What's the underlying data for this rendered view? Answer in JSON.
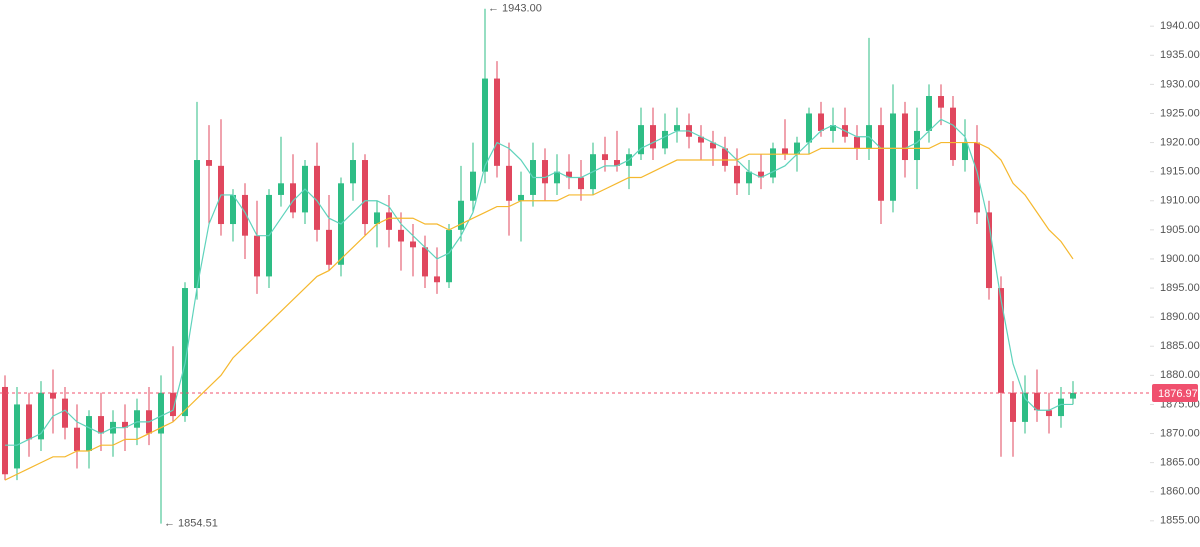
{
  "chart_data": {
    "type": "candlestick",
    "open": [
      1878,
      1864,
      1875,
      1869,
      1877,
      1876,
      1871,
      1867,
      1873,
      1870,
      1872,
      1871,
      1874,
      1870,
      1877,
      1873,
      1895,
      1917,
      1916,
      1906,
      1911,
      1904,
      1897,
      1911,
      1913,
      1908,
      1916,
      1905,
      1899,
      1913,
      1917,
      1906,
      1908,
      1905,
      1903,
      1902,
      1897,
      1896,
      1905,
      1910,
      1915,
      1931,
      1916,
      1910,
      1911,
      1917,
      1913,
      1915,
      1914,
      1912,
      1918,
      1917,
      1916,
      1918,
      1923,
      1919,
      1922,
      1923,
      1921,
      1920,
      1919,
      1916,
      1913,
      1915,
      1914,
      1919,
      1918,
      1920,
      1925,
      1922,
      1923,
      1921,
      1919,
      1923,
      1910,
      1925,
      1917,
      1922,
      1928,
      1926,
      1917,
      1920,
      1908,
      1895,
      1877,
      1872,
      1877,
      1874,
      1873,
      1876
    ],
    "high": [
      1880,
      1878,
      1877,
      1879,
      1881,
      1878,
      1875,
      1874,
      1877,
      1874,
      1875,
      1876,
      1878,
      1880,
      1885,
      1896,
      1927,
      1923,
      1924,
      1912,
      1913,
      1910,
      1912,
      1921,
      1918,
      1917,
      1920,
      1911,
      1914,
      1920,
      1918,
      1910,
      1911,
      1908,
      1906,
      1904,
      1902,
      1906,
      1916,
      1920,
      1943,
      1934,
      1920,
      1915,
      1920,
      1919,
      1918,
      1918,
      1917,
      1920,
      1921,
      1922,
      1919,
      1926,
      1926,
      1925,
      1926,
      1925,
      1923,
      1922,
      1921,
      1919,
      1917,
      1918,
      1920,
      1924,
      1921,
      1926,
      1927,
      1926,
      1926,
      1923,
      1938,
      1926,
      1930,
      1927,
      1926,
      1930,
      1930,
      1928,
      1924,
      1923,
      1910,
      1897,
      1879,
      1880,
      1881,
      1877,
      1878,
      1879
    ],
    "low": [
      1862,
      1862,
      1866,
      1867,
      1870,
      1869,
      1864,
      1864,
      1867,
      1866,
      1867,
      1868,
      1868,
      1854.51,
      1872,
      1872,
      1893,
      1906,
      1904,
      1903,
      1900,
      1894,
      1895,
      1909,
      1907,
      1906,
      1903,
      1898,
      1897,
      1910,
      1904,
      1902,
      1902,
      1898,
      1897,
      1895,
      1894,
      1895,
      1903,
      1908,
      1913,
      1914,
      1904,
      1903,
      1909,
      1910,
      1911,
      1912,
      1910,
      1911,
      1915,
      1915,
      1912,
      1917,
      1917,
      1918,
      1920,
      1919,
      1917,
      1916,
      1915,
      1911,
      1911,
      1912,
      1913,
      1917,
      1915,
      1918,
      1921,
      1920,
      1920,
      1917,
      1917,
      1906,
      1908,
      1914,
      1912,
      1920,
      1923,
      1916,
      1915,
      1906,
      1893,
      1866,
      1866,
      1870,
      1872,
      1870,
      1871,
      1875
    ],
    "close": [
      1863,
      1875,
      1869,
      1877,
      1876,
      1871,
      1867,
      1873,
      1870,
      1872,
      1871,
      1874,
      1870,
      1877,
      1873,
      1895,
      1917,
      1916,
      1906,
      1911,
      1904,
      1897,
      1911,
      1913,
      1908,
      1916,
      1905,
      1899,
      1913,
      1917,
      1906,
      1908,
      1905,
      1903,
      1902,
      1897,
      1896,
      1905,
      1910,
      1915,
      1931,
      1916,
      1910,
      1911,
      1917,
      1913,
      1915,
      1914,
      1912,
      1918,
      1917,
      1916,
      1918,
      1923,
      1919,
      1922,
      1923,
      1921,
      1920,
      1919,
      1916,
      1913,
      1915,
      1914,
      1919,
      1918,
      1920,
      1925,
      1922,
      1923,
      1921,
      1919,
      1923,
      1910,
      1925,
      1917,
      1922,
      1928,
      1926,
      1917,
      1920,
      1908,
      1895,
      1877,
      1872,
      1877,
      1874,
      1873,
      1876,
      1876.97
    ],
    "up_color": "#2ebd85",
    "down_color": "#e0475e",
    "lines": [
      {
        "color": "#5fd3bc",
        "values": [
          1868,
          1868,
          1869,
          1870,
          1873,
          1874,
          1872,
          1871,
          1870,
          1871,
          1871,
          1872,
          1872,
          1873,
          1874,
          1882,
          1895,
          1906,
          1911,
          1911,
          1908,
          1904,
          1904,
          1907,
          1910,
          1912,
          1910,
          1907,
          1906,
          1908,
          1910,
          1910,
          1909,
          1906,
          1904,
          1902,
          1900,
          1901,
          1904,
          1908,
          1916,
          1920,
          1919,
          1917,
          1914,
          1914,
          1915,
          1914,
          1914,
          1915,
          1916,
          1916,
          1917,
          1919,
          1920,
          1921,
          1922,
          1922,
          1921,
          1920,
          1919,
          1917,
          1915,
          1914,
          1915,
          1916,
          1918,
          1920,
          1922,
          1923,
          1922,
          1921,
          1921,
          1919,
          1919,
          1919,
          1920,
          1922,
          1924,
          1923,
          1921,
          1915,
          1906,
          1893,
          1882,
          1876,
          1874,
          1874,
          1875,
          1875
        ]
      },
      {
        "color": "#f5b82e",
        "values": [
          1862,
          1863,
          1864,
          1865,
          1866,
          1866,
          1867,
          1867,
          1868,
          1868,
          1869,
          1869,
          1870,
          1871,
          1872,
          1874,
          1876,
          1878,
          1880,
          1883,
          1885,
          1887,
          1889,
          1891,
          1893,
          1895,
          1897,
          1898,
          1900,
          1902,
          1904,
          1906,
          1907,
          1907,
          1907,
          1906,
          1906,
          1905,
          1906,
          1907,
          1908,
          1909,
          1909,
          1910,
          1910,
          1910,
          1910,
          1911,
          1911,
          1911,
          1912,
          1913,
          1914,
          1914,
          1915,
          1916,
          1917,
          1917,
          1917,
          1917,
          1917,
          1917,
          1918,
          1918,
          1918,
          1918,
          1918,
          1918,
          1919,
          1919,
          1919,
          1919,
          1919,
          1919,
          1919,
          1919,
          1919,
          1919,
          1920,
          1920,
          1920,
          1920,
          1919,
          1917,
          1913,
          1911,
          1908,
          1905,
          1903,
          1900
        ]
      }
    ],
    "ylim": [
      1850.5,
      1944.5
    ],
    "yticks": [
      {
        "value": 1855,
        "label": "1855.00"
      },
      {
        "value": 1860,
        "label": "1860.00"
      },
      {
        "value": 1865,
        "label": "1865.00"
      },
      {
        "value": 1870,
        "label": "1870.00"
      },
      {
        "value": 1875,
        "label": "1875.00"
      },
      {
        "value": 1880,
        "label": "1880.00"
      },
      {
        "value": 1885,
        "label": "1885.00"
      },
      {
        "value": 1890,
        "label": "1890.00"
      },
      {
        "value": 1895,
        "label": "1895.00"
      },
      {
        "value": 1900,
        "label": "1900.00"
      },
      {
        "value": 1905,
        "label": "1905.00"
      },
      {
        "value": 1910,
        "label": "1910.00"
      },
      {
        "value": 1915,
        "label": "1915.00"
      },
      {
        "value": 1920,
        "label": "1920.00"
      },
      {
        "value": 1925,
        "label": "1925.00"
      },
      {
        "value": 1930,
        "label": "1930.00"
      },
      {
        "value": 1935,
        "label": "1935.00"
      },
      {
        "value": 1940,
        "label": "1940.00"
      }
    ],
    "high_marker": {
      "value": 1943,
      "label": "← 1943.00"
    },
    "low_marker": {
      "value": 1854.51,
      "label": "← 1854.51"
    },
    "last_price": {
      "value": 1876.97,
      "label": "1876.97",
      "color": "#f0506e"
    }
  }
}
